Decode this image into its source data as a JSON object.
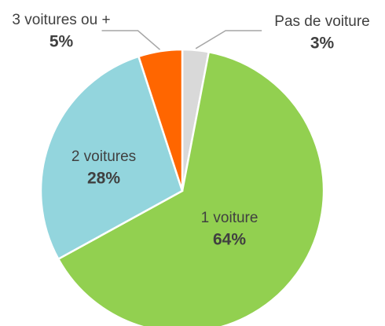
{
  "chart_data": {
    "type": "pie",
    "categories": [
      "Pas de voiture",
      "1 voiture",
      "2 voitures",
      "3 voitures ou +"
    ],
    "values": [
      3,
      64,
      28,
      5
    ],
    "value_labels": [
      "3%",
      "64%",
      "28%",
      "5%"
    ],
    "colors": [
      "#d9d9d9",
      "#92d050",
      "#93d5dd",
      "#ff6600"
    ]
  }
}
